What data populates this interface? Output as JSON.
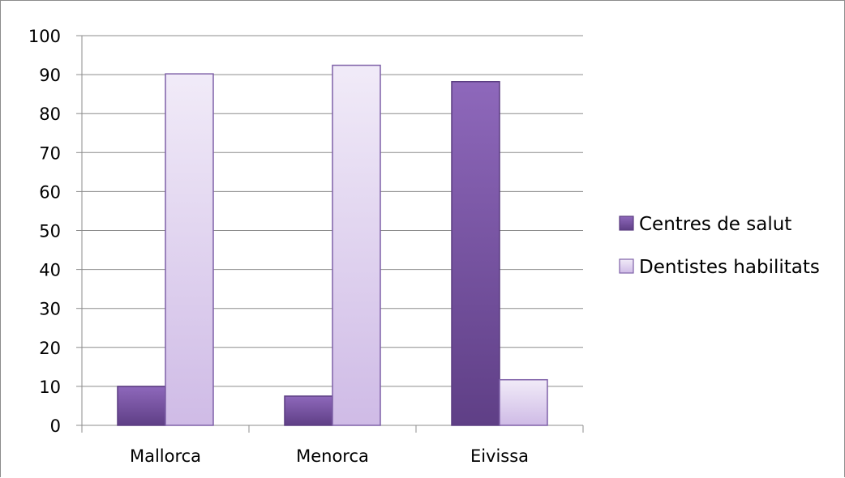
{
  "chart_data": {
    "type": "bar",
    "title": "",
    "xlabel": "",
    "ylabel": "",
    "categories": [
      "Mallorca",
      "Menorca",
      "Eivissa"
    ],
    "series": [
      {
        "name": "Centres de salut",
        "values": [
          10,
          7.5,
          88.2
        ],
        "color_light": "#8e68bb",
        "color_dark": "#5f3f86",
        "stroke": "#5a3c80"
      },
      {
        "name": "Dentistes habilitats",
        "values": [
          90.2,
          92.4,
          11.7
        ],
        "color_light": "#f1ebf8",
        "color_dark": "#cfbbe6",
        "stroke": "#7f61a8"
      }
    ],
    "ylim": [
      0,
      100
    ],
    "yticks": [
      0,
      10,
      20,
      30,
      40,
      50,
      60,
      70,
      80,
      90,
      100
    ],
    "grid": true,
    "legend_position": "right"
  }
}
